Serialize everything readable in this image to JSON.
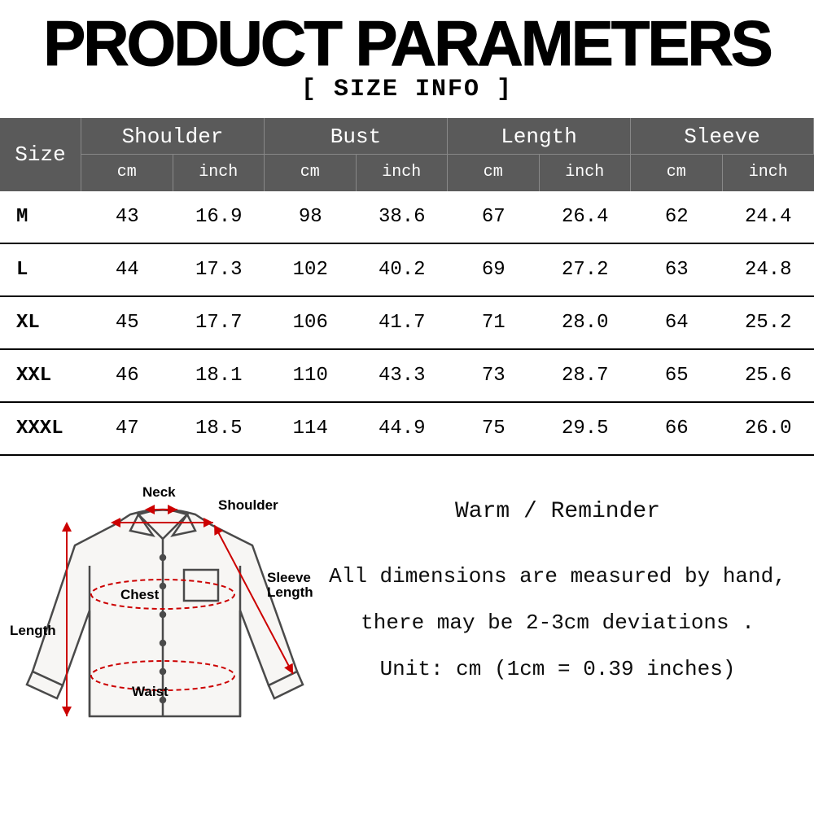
{
  "title": "PRODUCT PARAMETERS",
  "subtitle": "[ SIZE INFO ]",
  "header": {
    "size_label": "Size",
    "groups": [
      "Shoulder",
      "Bust",
      "Length",
      "Sleeve"
    ],
    "units": [
      "cm",
      "inch",
      "cm",
      "inch",
      "cm",
      "inch",
      "cm",
      "inch"
    ]
  },
  "rows": [
    {
      "size": "M",
      "vals": [
        "43",
        "16.9",
        "98",
        "38.6",
        "67",
        "26.4",
        "62",
        "24.4"
      ]
    },
    {
      "size": "L",
      "vals": [
        "44",
        "17.3",
        "102",
        "40.2",
        "69",
        "27.2",
        "63",
        "24.8"
      ]
    },
    {
      "size": "XL",
      "vals": [
        "45",
        "17.7",
        "106",
        "41.7",
        "71",
        "28.0",
        "64",
        "25.2"
      ]
    },
    {
      "size": "XXL",
      "vals": [
        "46",
        "18.1",
        "110",
        "43.3",
        "73",
        "28.7",
        "65",
        "25.6"
      ]
    },
    {
      "size": "XXXL",
      "vals": [
        "47",
        "18.5",
        "114",
        "44.9",
        "75",
        "29.5",
        "66",
        "26.0"
      ]
    }
  ],
  "diagram": {
    "labels": {
      "neck": "Neck",
      "shoulder": "Shoulder",
      "chest": "Chest",
      "waist": "Waist",
      "length": "Length",
      "sleeve": "Sleeve Length"
    },
    "colors": {
      "shirt_stroke": "#4a4a4a",
      "shirt_fill": "#f7f6f4",
      "measure": "#cc0000",
      "text": "#000000"
    }
  },
  "reminder": {
    "title": "Warm / Reminder",
    "line1": "All dimensions are measured by hand,",
    "line2": "there may be 2-3cm deviations .",
    "line3": "Unit: cm (1cm = 0.39 inches)"
  },
  "style": {
    "header_bg": "#5a5a5a",
    "header_border": "#888888",
    "row_border": "#000000",
    "text_color": "#000000",
    "title_fontsize": 78,
    "subtitle_fontsize": 30,
    "header_group_fontsize": 26,
    "header_unit_fontsize": 20,
    "cell_fontsize": 24,
    "reminder_fontsize": 26
  }
}
